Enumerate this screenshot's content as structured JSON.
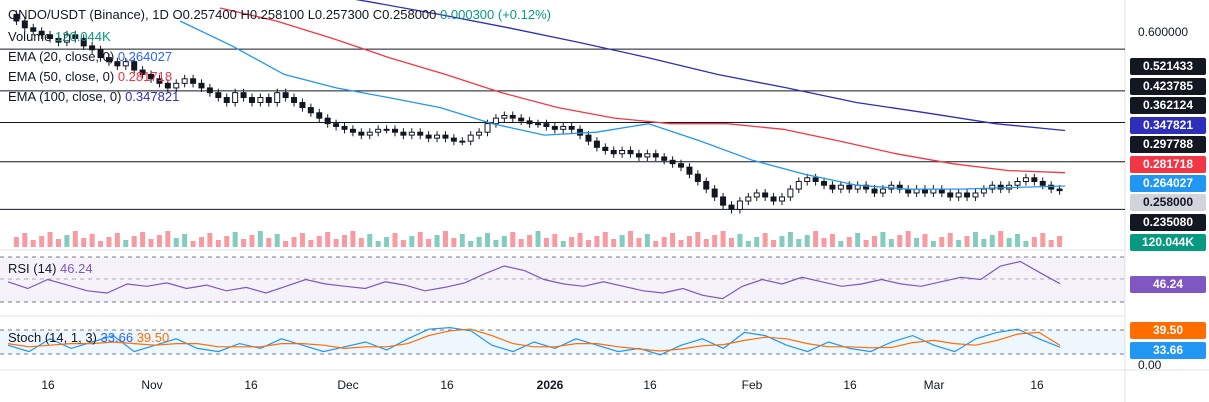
{
  "header": {
    "symbol": "ONDO/USDT (Binance), 1D",
    "open": "O0.257400",
    "high": "H0.258100",
    "low": "L0.257300",
    "close": "C0.258000",
    "change": "0.000300 (+0.12%)"
  },
  "indicators": {
    "volume": {
      "label": "Volume",
      "value": "120.044K",
      "color": "#089981"
    },
    "ema20": {
      "label": "EMA (20, close, 0)",
      "value": "0.264027",
      "color": "#2196f3"
    },
    "ema50": {
      "label": "EMA (50, close, 0)",
      "value": "0.281718",
      "color": "#f23645"
    },
    "ema100": {
      "label": "EMA (100, close, 0)",
      "value": "0.347821",
      "color": "#2e2eb8"
    },
    "rsi": {
      "label": "RSI (14)",
      "value": "46.24",
      "color": "#7e57c2"
    },
    "stoch": {
      "label": "Stoch (14, 1, 3)",
      "k": "33.66",
      "d": "39.50",
      "k_color": "#2196f3",
      "d_color": "#ff6d00"
    }
  },
  "price_axis": {
    "top_label": "0.600000",
    "level_lines": [
      "0.521433",
      "0.423785",
      "0.362124",
      "0.297788",
      "0.235080"
    ],
    "tags": [
      {
        "value": "0.521433",
        "bg": "#131722",
        "fg": "#ffffff"
      },
      {
        "value": "0.423785",
        "bg": "#131722",
        "fg": "#ffffff"
      },
      {
        "value": "0.362124",
        "bg": "#131722",
        "fg": "#ffffff"
      },
      {
        "value": "0.347821",
        "bg": "#2e2eb8",
        "fg": "#ffffff"
      },
      {
        "value": "0.297788",
        "bg": "#131722",
        "fg": "#ffffff"
      },
      {
        "value": "0.281718",
        "bg": "#f23645",
        "fg": "#ffffff"
      },
      {
        "value": "0.264027",
        "bg": "#2196f3",
        "fg": "#ffffff"
      },
      {
        "value": "0.258000",
        "bg": "#d1d4dc",
        "fg": "#131722"
      },
      {
        "value": "0.235080",
        "bg": "#131722",
        "fg": "#ffffff"
      },
      {
        "value": "120.044K",
        "bg": "#089981",
        "fg": "#ffffff"
      }
    ],
    "rsi_tag": {
      "value": "46.24",
      "bg": "#7e57c2",
      "fg": "#ffffff"
    },
    "stoch_tags": [
      {
        "value": "39.50",
        "bg": "#ff6d00",
        "fg": "#ffffff"
      },
      {
        "value": "33.66",
        "bg": "#2196f3",
        "fg": "#ffffff"
      }
    ],
    "stoch_bottom_label": "0.00"
  },
  "time_axis": {
    "labels": [
      "16",
      "Nov",
      "16",
      "Dec",
      "16",
      "2026",
      "16",
      "Feb",
      "16",
      "Mar",
      "16"
    ]
  },
  "chart_data": {
    "type": "candlestick",
    "symbol": "ONDO/USDT",
    "exchange": "Binance",
    "interval": "1D",
    "ohlc_last": {
      "open": 0.2574,
      "high": 0.2581,
      "low": 0.2573,
      "close": 0.258
    },
    "close_series": [
      0.62,
      0.6,
      0.58,
      0.57,
      0.56,
      0.55,
      0.54,
      0.56,
      0.55,
      0.53,
      0.52,
      0.5,
      0.49,
      0.48,
      0.49,
      0.47,
      0.46,
      0.45,
      0.44,
      0.43,
      0.44,
      0.45,
      0.44,
      0.43,
      0.42,
      0.41,
      0.4,
      0.42,
      0.41,
      0.4,
      0.41,
      0.4,
      0.42,
      0.41,
      0.4,
      0.39,
      0.38,
      0.37,
      0.36,
      0.355,
      0.35,
      0.345,
      0.34,
      0.345,
      0.35,
      0.35,
      0.345,
      0.34,
      0.345,
      0.34,
      0.335,
      0.34,
      0.335,
      0.33,
      0.33,
      0.34,
      0.345,
      0.36,
      0.37,
      0.375,
      0.37,
      0.365,
      0.36,
      0.36,
      0.355,
      0.35,
      0.355,
      0.35,
      0.34,
      0.33,
      0.32,
      0.315,
      0.31,
      0.315,
      0.31,
      0.305,
      0.31,
      0.305,
      0.3,
      0.295,
      0.29,
      0.28,
      0.27,
      0.26,
      0.25,
      0.24,
      0.235,
      0.245,
      0.25,
      0.255,
      0.25,
      0.245,
      0.25,
      0.26,
      0.27,
      0.275,
      0.27,
      0.265,
      0.26,
      0.265,
      0.26,
      0.265,
      0.26,
      0.255,
      0.26,
      0.265,
      0.26,
      0.255,
      0.26,
      0.255,
      0.26,
      0.255,
      0.25,
      0.255,
      0.25,
      0.255,
      0.26,
      0.265,
      0.26,
      0.265,
      0.27,
      0.275,
      0.27,
      0.265,
      0.26,
      0.258
    ],
    "ema20": [
      0.6,
      0.53,
      0.46,
      0.43,
      0.41,
      0.39,
      0.36,
      0.34,
      0.345,
      0.36,
      0.33,
      0.3,
      0.28,
      0.265,
      0.26,
      0.26,
      0.262,
      0.264
    ],
    "ema50": [
      0.64,
      0.6,
      0.55,
      0.5,
      0.46,
      0.42,
      0.39,
      0.37,
      0.36,
      0.36,
      0.35,
      0.33,
      0.31,
      0.295,
      0.285,
      0.282
    ],
    "ema100": [
      0.7,
      0.66,
      0.62,
      0.58,
      0.54,
      0.5,
      0.46,
      0.43,
      0.4,
      0.38,
      0.36,
      0.348
    ],
    "price_levels": [
      0.521433,
      0.423785,
      0.362124,
      0.297788,
      0.23508
    ],
    "volume_last": "120.044K",
    "rsi_value": 46.24,
    "rsi_series": [
      48,
      42,
      50,
      45,
      40,
      38,
      46,
      44,
      47,
      42,
      45,
      40,
      43,
      38,
      44,
      50,
      46,
      44,
      42,
      48,
      45,
      40,
      43,
      47,
      55,
      62,
      58,
      50,
      46,
      44,
      48,
      44,
      40,
      38,
      42,
      36,
      33,
      44,
      50,
      46,
      52,
      48,
      44,
      46,
      50,
      46,
      44,
      48,
      52,
      50,
      62,
      66,
      56,
      46.24
    ],
    "stoch_k_value": 33.66,
    "stoch_d_value": 39.5,
    "stoch_k": [
      40,
      20,
      60,
      30,
      50,
      70,
      20,
      40,
      60,
      30,
      20,
      45,
      30,
      60,
      40,
      20,
      35,
      50,
      25,
      60,
      90,
      95,
      85,
      40,
      20,
      50,
      30,
      60,
      40,
      20,
      30,
      10,
      40,
      60,
      30,
      80,
      70,
      40,
      20,
      50,
      30,
      20,
      50,
      70,
      40,
      20,
      60,
      80,
      90,
      60,
      33.66
    ],
    "stoch_d": [
      45,
      35,
      40,
      45,
      45,
      50,
      45,
      40,
      45,
      45,
      35,
      35,
      35,
      45,
      45,
      40,
      30,
      35,
      35,
      45,
      70,
      85,
      90,
      70,
      45,
      35,
      35,
      45,
      45,
      35,
      28,
      22,
      28,
      38,
      42,
      55,
      65,
      60,
      45,
      35,
      35,
      32,
      33,
      48,
      55,
      45,
      40,
      55,
      75,
      80,
      39.5
    ],
    "x_ticks": [
      "16",
      "Nov",
      "16",
      "Dec",
      "16",
      "2026",
      "16",
      "Feb",
      "16",
      "Mar",
      "16"
    ],
    "grid": false
  }
}
